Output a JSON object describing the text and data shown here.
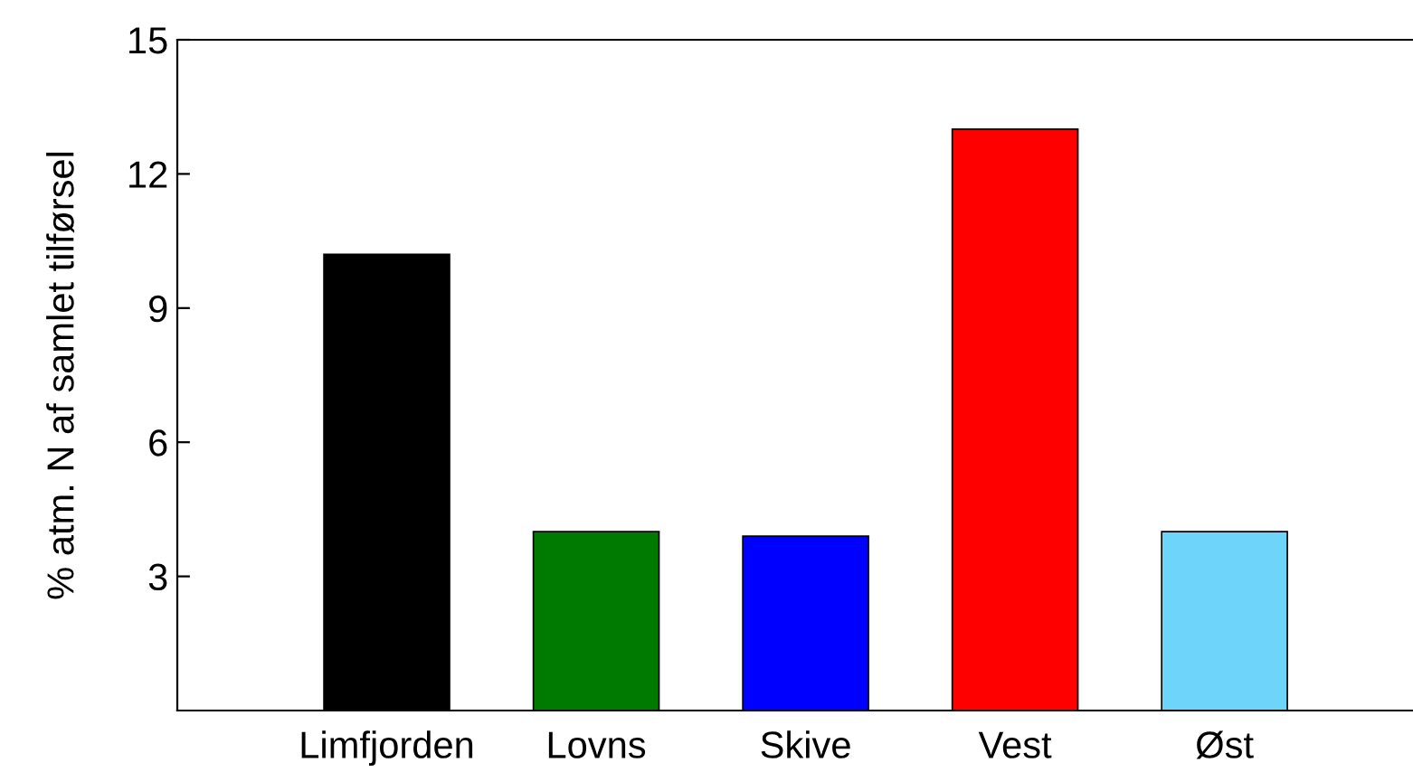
{
  "chart_data": {
    "type": "bar",
    "ylabel": "% atm. N af samlet tilførsel",
    "categories": [
      "Limfjorden",
      "Lovns",
      "Skive",
      "Vest",
      "Øst"
    ],
    "values": [
      10.2,
      4.0,
      3.9,
      13.0,
      4.0
    ],
    "colors": [
      "#000000",
      "#007a00",
      "#0000ff",
      "#ff0000",
      "#6fd4fa"
    ],
    "ylim": [
      0,
      15
    ],
    "yticks": [
      3,
      6,
      9,
      12,
      15
    ],
    "grid": false,
    "legend": false
  }
}
